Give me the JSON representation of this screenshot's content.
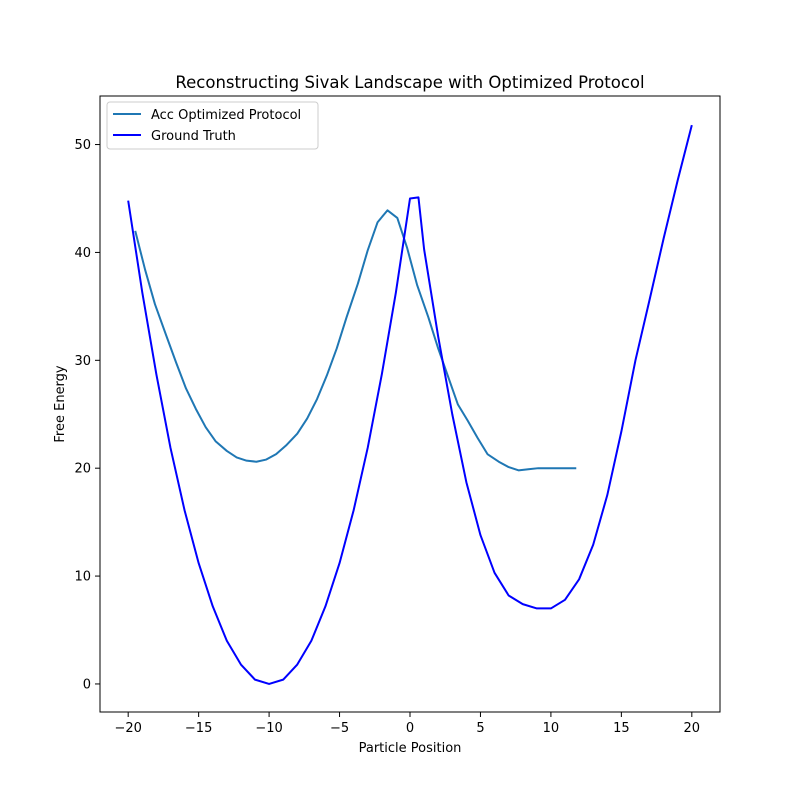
{
  "chart_data": {
    "type": "line",
    "title": "Reconstructing Sivak Landscape with Optimized Protocol",
    "xlabel": "Particle Position",
    "ylabel": "Free Energy",
    "xlim": [
      -22,
      22
    ],
    "ylim": [
      -2.6,
      54.5
    ],
    "xticks": [
      -20,
      -15,
      -10,
      -5,
      0,
      5,
      10,
      15,
      20
    ],
    "yticks": [
      0,
      10,
      20,
      30,
      40,
      50
    ],
    "grid": false,
    "legend_position": "upper left",
    "series": [
      {
        "name": "Acc Optimized Protocol",
        "color": "#1f77b4",
        "x": [
          -19.5,
          -18.8,
          -18.1,
          -17.3,
          -16.6,
          -15.9,
          -15.2,
          -14.5,
          -13.8,
          -13.0,
          -12.3,
          -11.6,
          -10.9,
          -10.2,
          -9.5,
          -8.8,
          -8.0,
          -7.3,
          -6.6,
          -5.9,
          -5.2,
          -4.5,
          -3.7,
          -3.0,
          -2.3,
          -1.6,
          -0.9,
          -0.2,
          0.5,
          1.3,
          2.0,
          2.7,
          3.4,
          4.1,
          4.8,
          5.5,
          6.3,
          7.0,
          7.7,
          8.4,
          9.1,
          9.8,
          10.5,
          11.3,
          11.8
        ],
        "y": [
          42.0,
          38.4,
          35.2,
          32.3,
          29.8,
          27.4,
          25.5,
          23.8,
          22.5,
          21.6,
          21.0,
          20.7,
          20.6,
          20.8,
          21.3,
          22.1,
          23.2,
          24.6,
          26.4,
          28.6,
          31.1,
          34.0,
          37.1,
          40.2,
          42.8,
          43.9,
          43.2,
          40.4,
          37.0,
          34.0,
          31.1,
          28.5,
          25.9,
          24.4,
          22.8,
          21.3,
          20.6,
          20.1,
          19.8,
          19.9,
          20.0,
          20.0,
          20.0,
          20.0,
          20.0
        ]
      },
      {
        "name": "Ground Truth",
        "color": "#0000ff",
        "x": [
          -20,
          -19,
          -18,
          -17,
          -16,
          -15,
          -14,
          -13,
          -12,
          -11,
          -10,
          -9,
          -8,
          -7,
          -6,
          -5,
          -4,
          -3,
          -2,
          -1,
          0,
          0.6,
          1,
          2,
          3,
          4,
          5,
          6,
          7,
          8,
          9,
          10,
          11,
          12,
          13,
          14,
          15,
          16,
          17,
          18,
          19,
          20
        ],
        "y": [
          44.8,
          36.3,
          28.7,
          21.9,
          16.1,
          11.2,
          7.2,
          4.0,
          1.8,
          0.4,
          0.0,
          0.4,
          1.8,
          4.0,
          7.2,
          11.2,
          16.1,
          21.9,
          28.7,
          36.3,
          45.0,
          45.1,
          40.3,
          32.2,
          25.0,
          18.7,
          13.8,
          10.3,
          8.2,
          7.4,
          7.0,
          7.0,
          7.8,
          9.7,
          12.9,
          17.5,
          23.4,
          30.0,
          35.6,
          41.3,
          46.7,
          51.8
        ]
      }
    ]
  }
}
